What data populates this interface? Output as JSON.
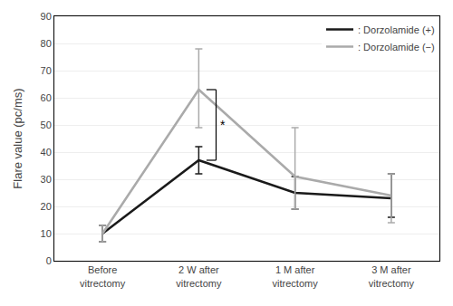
{
  "chart_data": {
    "type": "line",
    "title": "",
    "ylabel": "Flare value (pc/ms)",
    "categories": [
      "Before\nvitrectomy",
      "2 W after\nvitrectomy",
      "1 M after\nvitrectomy",
      "3 M after\nvitrectomy"
    ],
    "series": [
      {
        "name": ": Dorzolamide (+)",
        "color": "#1a1a1a",
        "values": [
          10,
          37,
          25,
          23
        ],
        "yerr_low": [
          3,
          5,
          6,
          7
        ],
        "yerr_high": [
          3,
          5,
          6,
          9
        ]
      },
      {
        "name": ": Dorzolamide (−)",
        "color": "#aaaaaa",
        "values": [
          10,
          63,
          31,
          24
        ],
        "yerr_low": [
          3,
          14,
          12,
          10
        ],
        "yerr_high": [
          3,
          15,
          18,
          8
        ]
      }
    ],
    "ylim": [
      0,
      90
    ],
    "yticks": [
      0,
      10,
      20,
      30,
      40,
      50,
      60,
      70,
      80,
      90
    ],
    "grid": true,
    "legend": "upper right",
    "annotations": [
      {
        "text": "*",
        "category": "2 W after\nvitrectomy",
        "y_from": 37,
        "y_to": 63
      }
    ]
  }
}
